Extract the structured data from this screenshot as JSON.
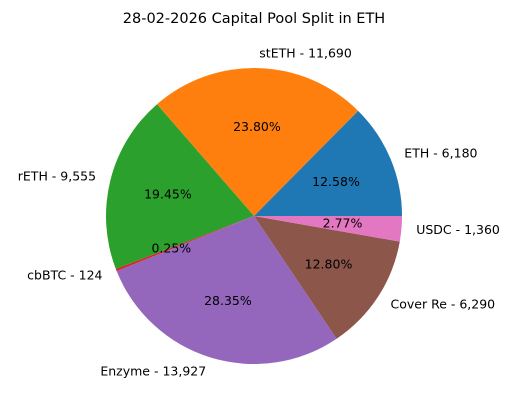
{
  "chart_data": {
    "type": "pie",
    "title": "28-02-2026 Capital Pool Split in ETH",
    "start_angle": 0,
    "direction": "counterclockwise",
    "slices": [
      {
        "label": "ETH - 6,180",
        "percent_label": "12.58%",
        "value": 6180,
        "color": "#1f77b4"
      },
      {
        "label": "stETH - 11,690",
        "percent_label": "23.80%",
        "value": 11690,
        "color": "#ff7f0e"
      },
      {
        "label": "rETH - 9,555",
        "percent_label": "19.45%",
        "value": 9555,
        "color": "#2ca02c"
      },
      {
        "label": "cbBTC - 124",
        "percent_label": "0.25%",
        "value": 124,
        "color": "#d62728"
      },
      {
        "label": "Enzyme - 13,927",
        "percent_label": "28.35%",
        "value": 13927,
        "color": "#9467bd"
      },
      {
        "label": "Cover Re - 6,290",
        "percent_label": "12.80%",
        "value": 6290,
        "color": "#8c564b"
      },
      {
        "label": "USDC - 1,360",
        "percent_label": "2.77%",
        "value": 1360,
        "color": "#e377c2"
      }
    ]
  }
}
